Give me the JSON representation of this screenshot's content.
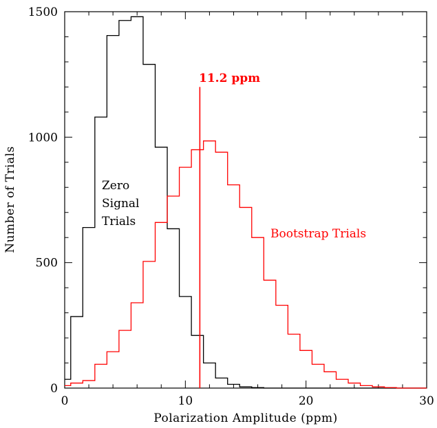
{
  "chart_data": {
    "type": "histogram",
    "xlabel": "Polarization Amplitude (ppm)",
    "ylabel": "Number of Trials",
    "xlim": [
      0,
      30
    ],
    "ylim": [
      0,
      1500
    ],
    "x_ticks": [
      0,
      10,
      20,
      30
    ],
    "y_ticks": [
      0,
      500,
      1000,
      1500
    ],
    "bin_edges": [
      0,
      0.5,
      1.5,
      2.5,
      3.5,
      4.5,
      5.5,
      6.5,
      7.5,
      8.5,
      9.5,
      10.5,
      11.5,
      12.5,
      13.5,
      14.5,
      15.5,
      16.5,
      17.5,
      18.5,
      19.5,
      20.5,
      21.5,
      22.5,
      23.5,
      24.5,
      25.5,
      26.5,
      27.5,
      28.5,
      29.5,
      30
    ],
    "series": [
      {
        "name": "Zero Signal Trials",
        "color": "#000000",
        "values": [
          35,
          285,
          640,
          1080,
          1405,
          1465,
          1480,
          1290,
          960,
          635,
          365,
          210,
          100,
          40,
          15,
          5,
          2,
          0,
          0,
          0,
          0,
          0,
          0,
          0,
          0,
          0,
          0,
          0,
          0,
          0,
          0
        ]
      },
      {
        "name": "Bootstrap Trials",
        "color": "#ff0000",
        "values": [
          10,
          20,
          30,
          95,
          145,
          230,
          340,
          505,
          660,
          765,
          880,
          950,
          985,
          940,
          810,
          720,
          600,
          430,
          330,
          215,
          150,
          95,
          65,
          35,
          20,
          10,
          5,
          2,
          0,
          0,
          0
        ]
      }
    ],
    "annotations": [
      {
        "text": "Zero",
        "color": "#000000"
      },
      {
        "text": "Signal",
        "color": "#000000"
      },
      {
        "text": "Trials",
        "color": "#000000"
      },
      {
        "text": "Bootstrap Trials",
        "color": "#ff0000"
      },
      {
        "text": "11.2 ppm",
        "color": "#ff0000"
      }
    ],
    "vline": {
      "x": 11.2,
      "y_top": 1200,
      "color": "#ff0000"
    },
    "grid": false
  }
}
